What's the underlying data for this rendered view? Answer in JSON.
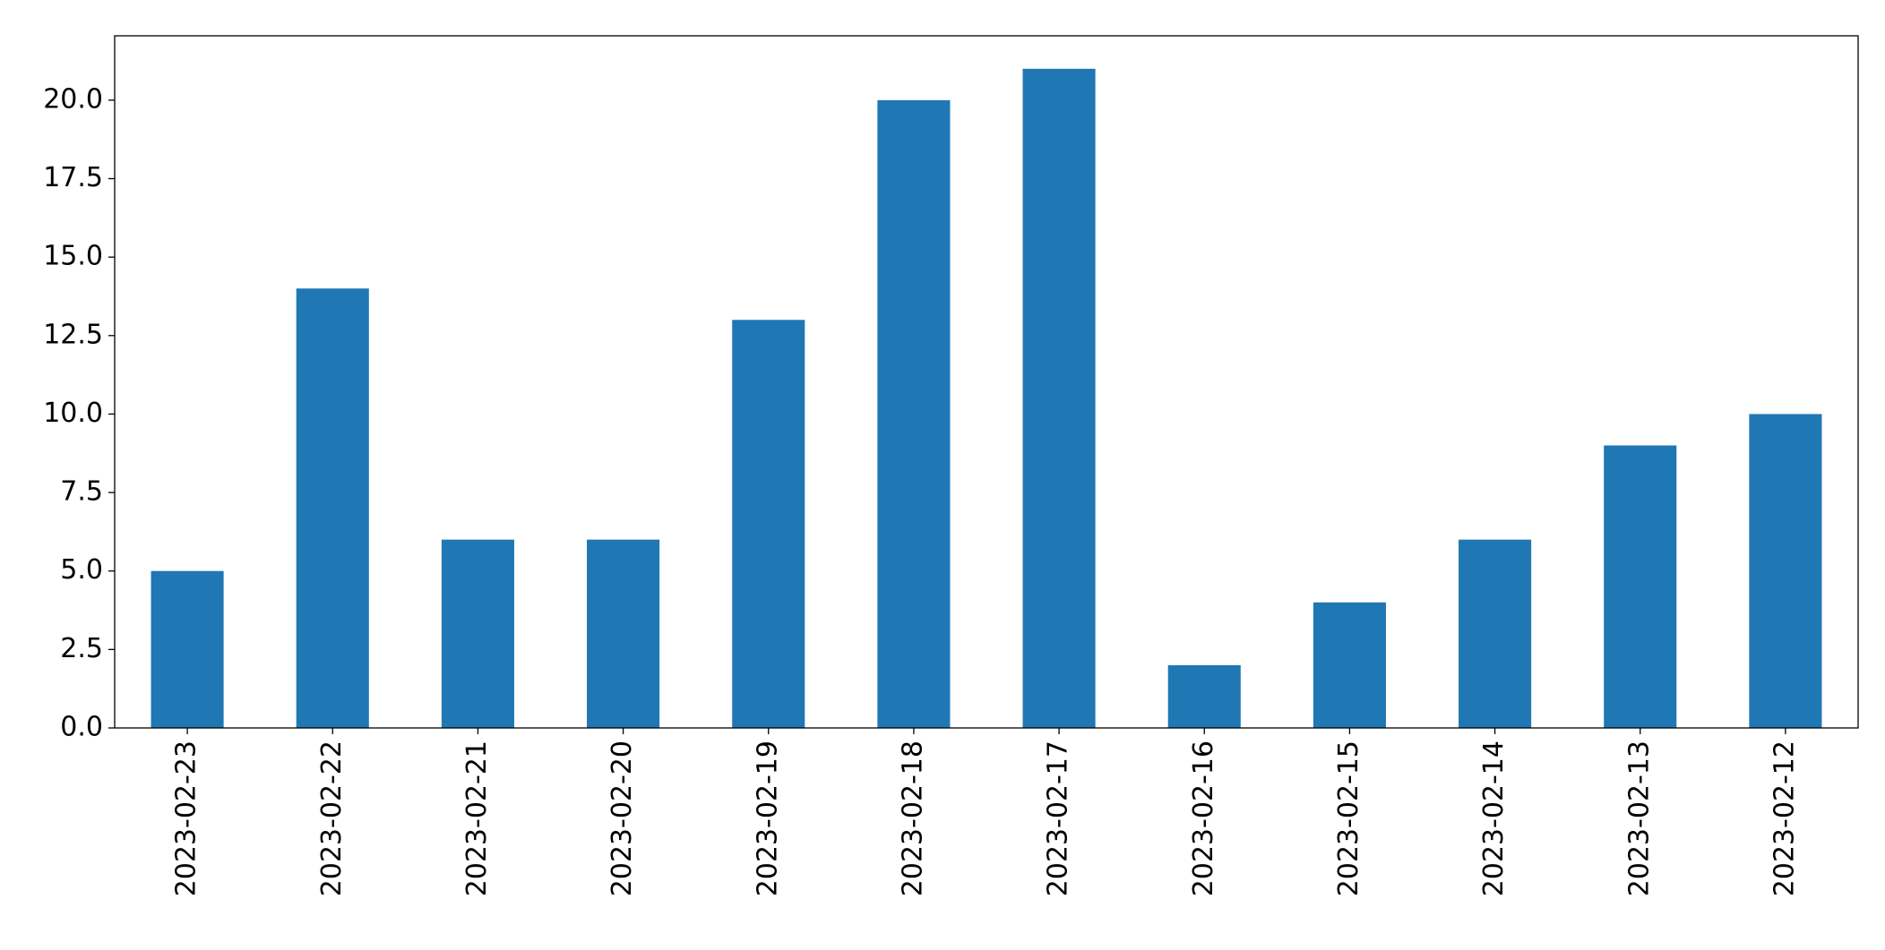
{
  "chart_data": {
    "type": "bar",
    "categories": [
      "2023-02-23",
      "2023-02-22",
      "2023-02-21",
      "2023-02-20",
      "2023-02-19",
      "2023-02-18",
      "2023-02-17",
      "2023-02-16",
      "2023-02-15",
      "2023-02-14",
      "2023-02-13",
      "2023-02-12"
    ],
    "values": [
      5,
      14,
      6,
      6,
      13,
      20,
      21,
      2,
      4,
      6,
      9,
      10
    ],
    "color": "#1f77b4",
    "ylim": [
      0,
      22.05
    ],
    "yticks": [
      {
        "value": 0,
        "label": "0.0"
      },
      2.5,
      {
        "value": 5,
        "label": "5.0"
      },
      7.5,
      {
        "value": 10,
        "label": "10.0"
      },
      12.5,
      {
        "value": 15,
        "label": "15.0"
      },
      17.5,
      {
        "value": 20,
        "label": "20.0"
      }
    ],
    "grid": false
  }
}
